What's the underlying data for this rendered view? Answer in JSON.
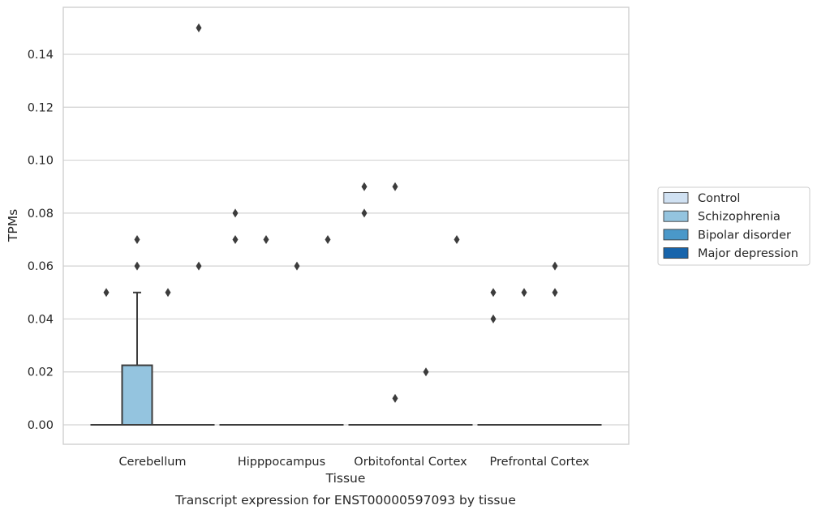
{
  "chart_data": {
    "type": "box",
    "caption": "Transcript expression for ENST00000597093 by tissue",
    "xlabel": "Tissue",
    "ylabel": "TPMs",
    "ylim": [
      -0.0075,
      0.1575
    ],
    "yticks": [
      "0.00",
      "0.02",
      "0.04",
      "0.06",
      "0.08",
      "0.10",
      "0.12",
      "0.14"
    ],
    "grid": true,
    "legend_position": "right",
    "categories": [
      "Cerebellum",
      "Hipppocampus",
      "Orbitofontal Cortex",
      "Prefrontal Cortex"
    ],
    "series": [
      {
        "name": "Control",
        "color": "#d0e1f2"
      },
      {
        "name": "Schizophrenia",
        "color": "#94c4df"
      },
      {
        "name": "Bipolar disorder",
        "color": "#4a98c9"
      },
      {
        "name": "Major depression",
        "color": "#1764ab"
      }
    ],
    "boxes": [
      {
        "category": 0,
        "series": 0,
        "q1": 0,
        "median": 0,
        "q3": 0,
        "whisker_low": 0,
        "whisker_high": 0,
        "outliers": [
          0.05
        ]
      },
      {
        "category": 0,
        "series": 1,
        "q1": 0,
        "median": 0,
        "q3": 0.0225,
        "whisker_low": 0,
        "whisker_high": 0.05,
        "outliers": [
          0.06,
          0.07
        ]
      },
      {
        "category": 0,
        "series": 2,
        "q1": 0,
        "median": 0,
        "q3": 0,
        "whisker_low": 0,
        "whisker_high": 0,
        "outliers": [
          0.05
        ]
      },
      {
        "category": 0,
        "series": 3,
        "q1": 0,
        "median": 0,
        "q3": 0,
        "whisker_low": 0,
        "whisker_high": 0,
        "outliers": [
          0.06,
          0.15
        ]
      },
      {
        "category": 1,
        "series": 0,
        "q1": 0,
        "median": 0,
        "q3": 0,
        "whisker_low": 0,
        "whisker_high": 0,
        "outliers": [
          0.07,
          0.08
        ]
      },
      {
        "category": 1,
        "series": 1,
        "q1": 0,
        "median": 0,
        "q3": 0,
        "whisker_low": 0,
        "whisker_high": 0,
        "outliers": [
          0.07
        ]
      },
      {
        "category": 1,
        "series": 2,
        "q1": 0,
        "median": 0,
        "q3": 0,
        "whisker_low": 0,
        "whisker_high": 0,
        "outliers": [
          0.06
        ]
      },
      {
        "category": 1,
        "series": 3,
        "q1": 0,
        "median": 0,
        "q3": 0,
        "whisker_low": 0,
        "whisker_high": 0,
        "outliers": [
          0.07
        ]
      },
      {
        "category": 2,
        "series": 0,
        "q1": 0,
        "median": 0,
        "q3": 0,
        "whisker_low": 0,
        "whisker_high": 0,
        "outliers": [
          0.08,
          0.09
        ]
      },
      {
        "category": 2,
        "series": 1,
        "q1": 0,
        "median": 0,
        "q3": 0,
        "whisker_low": 0,
        "whisker_high": 0,
        "outliers": [
          0.01,
          0.09
        ]
      },
      {
        "category": 2,
        "series": 2,
        "q1": 0,
        "median": 0,
        "q3": 0,
        "whisker_low": 0,
        "whisker_high": 0,
        "outliers": [
          0.02
        ]
      },
      {
        "category": 2,
        "series": 3,
        "q1": 0,
        "median": 0,
        "q3": 0,
        "whisker_low": 0,
        "whisker_high": 0,
        "outliers": [
          0.07
        ]
      },
      {
        "category": 3,
        "series": 0,
        "q1": 0,
        "median": 0,
        "q3": 0,
        "whisker_low": 0,
        "whisker_high": 0,
        "outliers": [
          0.04,
          0.05
        ]
      },
      {
        "category": 3,
        "series": 1,
        "q1": 0,
        "median": 0,
        "q3": 0,
        "whisker_low": 0,
        "whisker_high": 0,
        "outliers": [
          0.05
        ]
      },
      {
        "category": 3,
        "series": 2,
        "q1": 0,
        "median": 0,
        "q3": 0,
        "whisker_low": 0,
        "whisker_high": 0,
        "outliers": [
          0.05,
          0.06
        ]
      },
      {
        "category": 3,
        "series": 3,
        "q1": 0,
        "median": 0,
        "q3": 0,
        "whisker_low": 0,
        "whisker_high": 0,
        "outliers": []
      }
    ],
    "colors": {
      "grid": "#d3d3d3",
      "frame": "#cccccc",
      "box_edge": "#3c3c3c"
    }
  }
}
